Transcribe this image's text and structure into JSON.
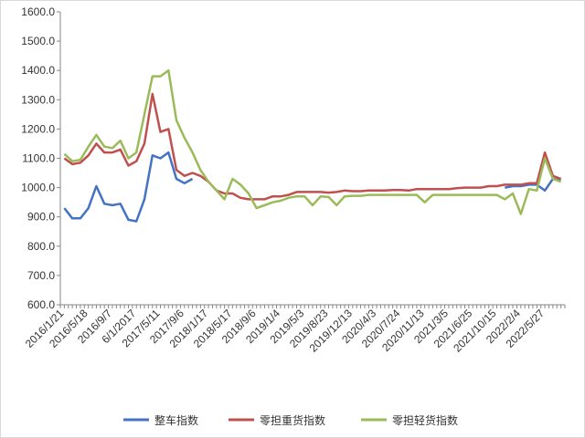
{
  "chart_data": {
    "type": "line",
    "categories": [
      "2016/1/21",
      null,
      null,
      "2016/5/18",
      null,
      null,
      "2016/9/7",
      null,
      null,
      "6/1/2017",
      null,
      null,
      "2017/5/11",
      null,
      null,
      "2017/9/6",
      null,
      null,
      "2018/1/17",
      null,
      null,
      "2018/5/17",
      null,
      null,
      "2018/9/6",
      null,
      null,
      "2019/1/4",
      null,
      null,
      "2019/5/3",
      null,
      null,
      "2019/8/23",
      null,
      null,
      "2019/12/13",
      null,
      null,
      "2020/4/3",
      null,
      null,
      "2020/7/24",
      null,
      null,
      "2020/11/13",
      null,
      null,
      "2021/3/5",
      null,
      null,
      "2021/6/25",
      null,
      null,
      "2021/10/15",
      null,
      null,
      "2022/2/4",
      null,
      null,
      "2022/5/27",
      null,
      null
    ],
    "series": [
      {
        "name": "整车指数",
        "color": "#4472c4",
        "values": [
          930,
          895,
          895,
          930,
          1005,
          945,
          940,
          945,
          890,
          885,
          960,
          1110,
          1100,
          1120,
          1030,
          1015,
          1030,
          null,
          null,
          null,
          null,
          null,
          null,
          null,
          null,
          null,
          null,
          null,
          null,
          null,
          null,
          null,
          null,
          null,
          null,
          null,
          null,
          null,
          null,
          null,
          null,
          null,
          null,
          null,
          null,
          null,
          null,
          null,
          null,
          null,
          null,
          null,
          null,
          null,
          null,
          1000,
          1005,
          1005,
          1010,
          1010,
          990,
          1030,
          1025
        ]
      },
      {
        "name": "零担重货指数",
        "color": "#c0504d",
        "values": [
          1100,
          1080,
          1085,
          1110,
          1150,
          1120,
          1120,
          1130,
          1075,
          1090,
          1150,
          1320,
          1190,
          1200,
          1060,
          1040,
          1050,
          1040,
          1020,
          990,
          980,
          980,
          965,
          960,
          960,
          960,
          970,
          970,
          975,
          985,
          985,
          985,
          985,
          983,
          985,
          990,
          988,
          988,
          990,
          990,
          990,
          992,
          992,
          990,
          995,
          995,
          995,
          995,
          995,
          998,
          1000,
          1000,
          1000,
          1005,
          1005,
          1010,
          1010,
          1010,
          1015,
          1015,
          1120,
          1040,
          1030
        ]
      },
      {
        "name": "零担轻货指数",
        "color": "#9bbb59",
        "values": [
          1115,
          1090,
          1095,
          1140,
          1180,
          1140,
          1135,
          1160,
          1100,
          1120,
          1250,
          1380,
          1380,
          1400,
          1230,
          1170,
          1120,
          1060,
          1020,
          990,
          960,
          1030,
          1010,
          980,
          930,
          940,
          950,
          955,
          965,
          970,
          970,
          940,
          970,
          968,
          940,
          970,
          972,
          972,
          975,
          975,
          975,
          975,
          975,
          975,
          975,
          950,
          975,
          975,
          975,
          975,
          975,
          975,
          975,
          975,
          975,
          960,
          980,
          910,
          995,
          990,
          1100,
          1030,
          1020
        ]
      }
    ],
    "ylim": [
      600,
      1600
    ],
    "yticks": [
      {
        "value": 600,
        "label": "600.0"
      },
      {
        "value": 700,
        "label": "700.0"
      },
      {
        "value": 800,
        "label": "800.0"
      },
      {
        "value": 900,
        "label": "900.0"
      },
      {
        "value": 1000,
        "label": "1000.0"
      },
      {
        "value": 1100,
        "label": "1100.0"
      },
      {
        "value": 1200,
        "label": "1200.0"
      },
      {
        "value": 1300,
        "label": "1300.0"
      },
      {
        "value": 1400,
        "label": "1400.0"
      },
      {
        "value": 1500,
        "label": "1500.0"
      },
      {
        "value": 1600,
        "label": "1600.0"
      }
    ],
    "grid": false,
    "legend": "bottom"
  }
}
